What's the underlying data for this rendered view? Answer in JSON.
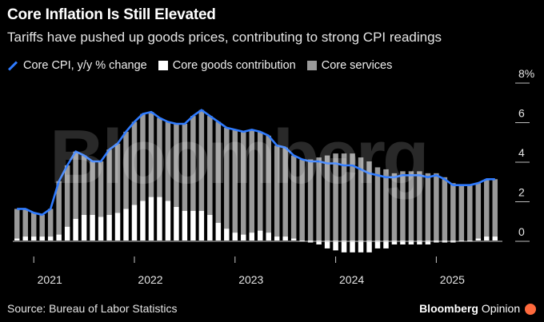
{
  "header": {
    "title": "Core Inflation Is Still Elevated",
    "subtitle": "Tariffs have pushed up goods prices, contributing to strong CPI readings"
  },
  "legend": {
    "items": [
      {
        "label": "Core CPI, y/y % change",
        "color": "#2f7bff",
        "kind": "line"
      },
      {
        "label": "Core goods contribution",
        "color": "#ffffff",
        "kind": "box"
      },
      {
        "label": "Core services",
        "color": "#9a9a9a",
        "kind": "box"
      }
    ]
  },
  "footer": {
    "source": "Source: Bureau of Labor Statistics",
    "brand": "Bloomberg",
    "brand_suffix": "Opinion"
  },
  "watermark": "Bloomberg",
  "colors": {
    "line": "#2f7bff",
    "goods": "#ffffff",
    "services": "#9a9a9a",
    "axis": "#c8c8c8"
  },
  "chart_data": {
    "type": "bar",
    "title": "Core Inflation Is Still Elevated",
    "xlabel": "",
    "ylabel": "",
    "ylim": [
      -1,
      8
    ],
    "y_ticks": [
      "0",
      "2",
      "4",
      "6",
      "8%"
    ],
    "x_ticks": [
      "2021",
      "2022",
      "2023",
      "2024",
      "2025"
    ],
    "months": [
      "2020-11",
      "2020-12",
      "2021-01",
      "2021-02",
      "2021-03",
      "2021-04",
      "2021-05",
      "2021-06",
      "2021-07",
      "2021-08",
      "2021-09",
      "2021-10",
      "2021-11",
      "2021-12",
      "2022-01",
      "2022-02",
      "2022-03",
      "2022-04",
      "2022-05",
      "2022-06",
      "2022-07",
      "2022-08",
      "2022-09",
      "2022-10",
      "2022-11",
      "2022-12",
      "2023-01",
      "2023-02",
      "2023-03",
      "2023-04",
      "2023-05",
      "2023-06",
      "2023-07",
      "2023-08",
      "2023-09",
      "2023-10",
      "2023-11",
      "2023-12",
      "2024-01",
      "2024-02",
      "2024-03",
      "2024-04",
      "2024-05",
      "2024-06",
      "2024-07",
      "2024-08",
      "2024-09",
      "2024-10",
      "2024-11",
      "2024-12",
      "2025-01",
      "2025-02",
      "2025-03",
      "2025-04",
      "2025-05",
      "2025-06",
      "2025-07",
      "2025-08"
    ],
    "series": [
      {
        "name": "Core CPI, y/y % change",
        "kind": "line",
        "values": [
          1.6,
          1.6,
          1.4,
          1.3,
          1.6,
          3.0,
          3.8,
          4.5,
          4.3,
          4.0,
          4.0,
          4.6,
          4.9,
          5.5,
          6.0,
          6.4,
          6.5,
          6.2,
          6.0,
          5.9,
          5.9,
          6.3,
          6.6,
          6.3,
          6.0,
          5.7,
          5.6,
          5.5,
          5.6,
          5.5,
          5.3,
          4.8,
          4.7,
          4.3,
          4.1,
          4.0,
          4.0,
          3.9,
          3.9,
          3.8,
          3.8,
          3.6,
          3.4,
          3.3,
          3.2,
          3.2,
          3.3,
          3.3,
          3.3,
          3.2,
          3.3,
          3.1,
          2.8,
          2.8,
          2.8,
          2.9,
          3.1,
          3.1
        ]
      },
      {
        "name": "Core goods contribution",
        "kind": "bar",
        "values": [
          0.1,
          0.2,
          0.2,
          0.2,
          0.2,
          0.3,
          0.7,
          1.1,
          1.3,
          1.3,
          1.2,
          1.3,
          1.4,
          1.6,
          1.8,
          2.0,
          2.2,
          2.2,
          2.0,
          1.7,
          1.5,
          1.5,
          1.5,
          1.3,
          0.9,
          0.6,
          0.4,
          0.3,
          0.4,
          0.5,
          0.4,
          0.2,
          0.2,
          0.1,
          0.0,
          -0.1,
          -0.2,
          -0.4,
          -0.5,
          -0.6,
          -0.6,
          -0.6,
          -0.6,
          -0.4,
          -0.4,
          -0.2,
          -0.2,
          -0.2,
          -0.2,
          -0.2,
          -0.1,
          -0.1,
          -0.1,
          0.0,
          0.0,
          0.1,
          0.2,
          0.2
        ]
      },
      {
        "name": "Core services",
        "kind": "bar",
        "values": [
          1.5,
          1.4,
          1.2,
          1.1,
          1.4,
          2.7,
          3.1,
          3.4,
          3.0,
          2.7,
          2.8,
          3.3,
          3.5,
          3.9,
          4.2,
          4.4,
          4.3,
          4.0,
          4.0,
          4.2,
          4.4,
          4.8,
          5.1,
          5.0,
          5.1,
          5.1,
          5.2,
          5.2,
          5.2,
          5.0,
          4.9,
          4.6,
          4.5,
          4.2,
          4.1,
          4.1,
          4.2,
          4.3,
          4.4,
          4.4,
          4.4,
          4.2,
          4.0,
          3.7,
          3.6,
          3.4,
          3.5,
          3.5,
          3.5,
          3.4,
          3.4,
          3.2,
          2.9,
          2.8,
          2.8,
          2.8,
          2.9,
          2.9
        ]
      }
    ]
  }
}
